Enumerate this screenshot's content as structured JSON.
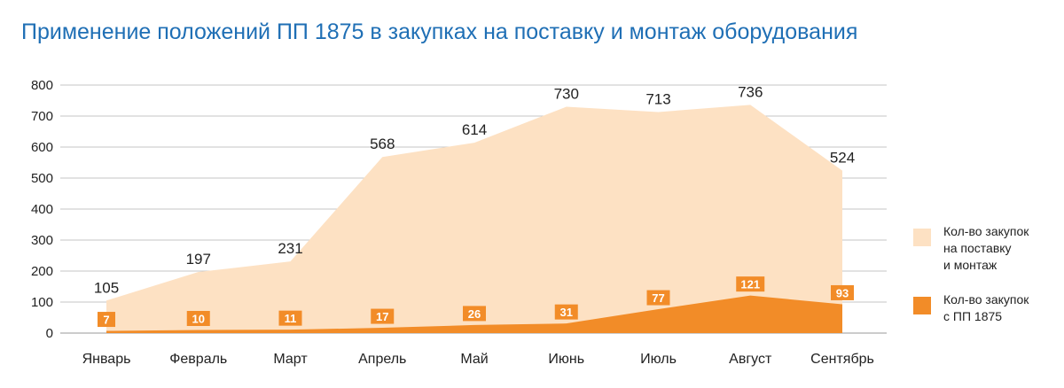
{
  "chart_data": {
    "type": "area",
    "title": "Применение положений ПП 1875 в закупках на поставку и монтаж оборудования",
    "categories": [
      "Январь",
      "Февраль",
      "Март",
      "Апрель",
      "Май",
      "Июнь",
      "Июль",
      "Август",
      "Сентябрь"
    ],
    "yticks": [
      "0",
      "100",
      "200",
      "300",
      "400",
      "500",
      "600",
      "700",
      "800"
    ],
    "ylim": [
      0,
      800
    ],
    "grid": true,
    "legend_position": "right",
    "series": [
      {
        "name": "Кол-во закупок на поставку и монтаж",
        "legend_lines": [
          "Кол-во закупок",
          "на поставку",
          "и монтаж"
        ],
        "values": [
          105,
          197,
          231,
          568,
          614,
          730,
          713,
          736,
          524
        ],
        "color": "#fde1c3"
      },
      {
        "name": "Кол-во закупок с ПП 1875",
        "legend_lines": [
          "Кол-во закупок",
          "с ПП 1875"
        ],
        "values": [
          7,
          10,
          11,
          17,
          26,
          31,
          77,
          121,
          93
        ],
        "color": "#f28c28"
      }
    ]
  }
}
